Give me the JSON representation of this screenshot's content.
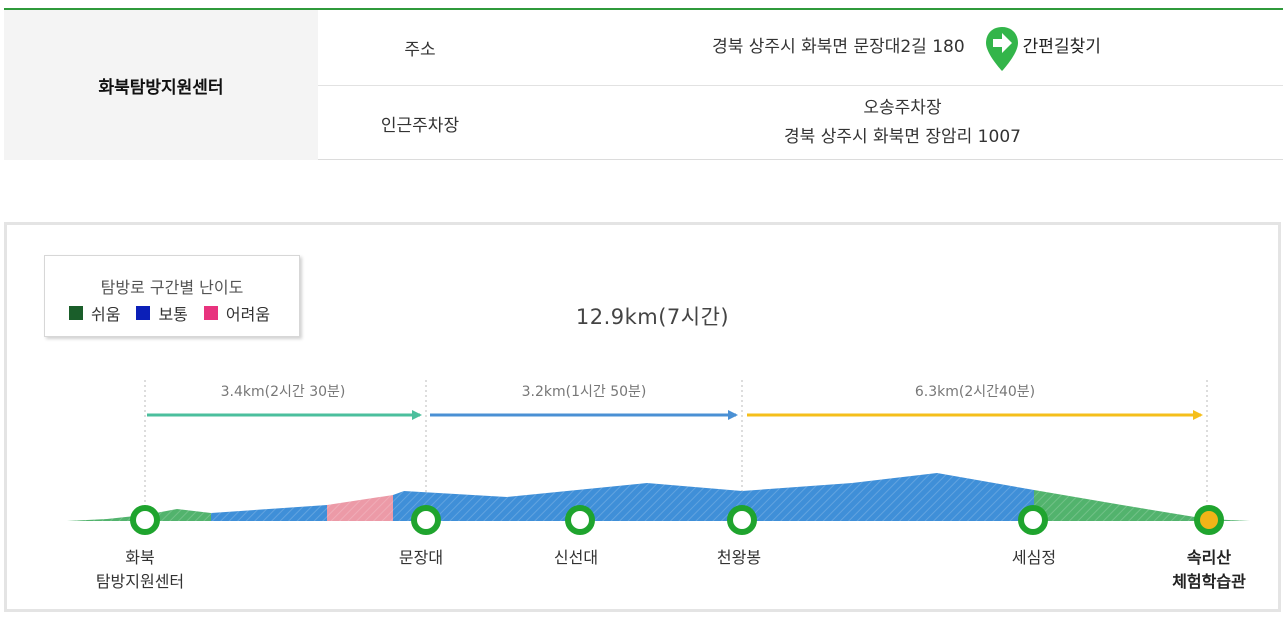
{
  "info": {
    "center_name": "화북탐방지원센터",
    "address_label": "주소",
    "address_value": "경북 상주시 화북면 문장대2길 180",
    "directions_label": "간편길찾기",
    "parking_label": "인근주차장",
    "parking_name": "오송주차장",
    "parking_address": "경북 상주시 화북면 장암리 1007"
  },
  "legend": {
    "title": "탐방로 구간별 난이도",
    "items": [
      {
        "label": "쉬움",
        "color": "#1a5e2a"
      },
      {
        "label": "보통",
        "color": "#0b1fb8"
      },
      {
        "label": "어려움",
        "color": "#e8337e"
      }
    ]
  },
  "course": {
    "total": "12.9km(7시간)",
    "segments": [
      {
        "label": "3.4km(2시간 30분)",
        "color": "#4bbf9d"
      },
      {
        "label": "3.2km(1시간 50분)",
        "color": "#4a90d4"
      },
      {
        "label": "6.3km(2시간40분)",
        "color": "#f5bf1b"
      }
    ],
    "stops": [
      {
        "name_line1": "화북",
        "name_line2": "탐방지원센터"
      },
      {
        "name_line1": "문장대",
        "name_line2": ""
      },
      {
        "name_line1": "신선대",
        "name_line2": ""
      },
      {
        "name_line1": "천왕봉",
        "name_line2": ""
      },
      {
        "name_line1": "세심정",
        "name_line2": ""
      },
      {
        "name_line1": "속리산",
        "name_line2": "체험학습관"
      }
    ],
    "colors": {
      "easy_fill": "#52b36d",
      "normal_fill": "#3f8fd8",
      "hard_fill": "#ec9aa7",
      "stop_ring": "#1fa42e",
      "end_dot": "#f2b418",
      "guide_line": "#bbbbbb"
    }
  }
}
